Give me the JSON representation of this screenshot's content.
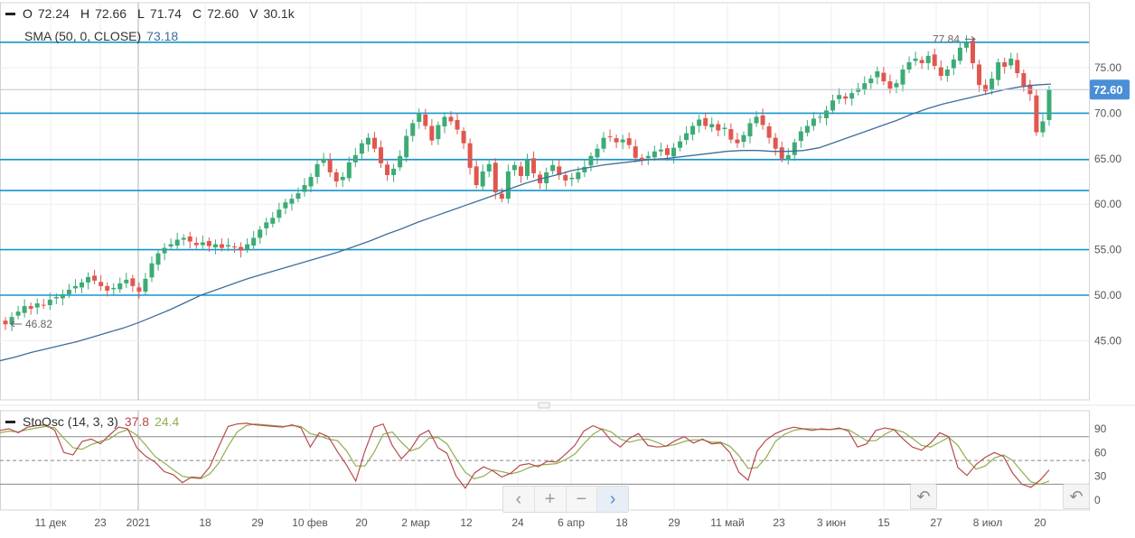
{
  "ohlc": {
    "o_label": "O",
    "o_value": "72.24",
    "h_label": "H",
    "h_value": "72.66",
    "l_label": "L",
    "l_value": "71.74",
    "c_label": "C",
    "c_value": "72.60",
    "v_label": "V",
    "v_value": "30.1k"
  },
  "sma": {
    "label": "SMA (50, 0, CLOSE)",
    "value": "73.18"
  },
  "stoch": {
    "label": "StoOsc (14, 3, 3)",
    "k_value": "37.8",
    "d_value": "24.4"
  },
  "colors": {
    "up": "#3cab76",
    "down": "#e0574f",
    "sma": "#3f6d99",
    "hline": "#1596cf",
    "k": "#b84a4a",
    "d": "#8fae4e",
    "price_tag": "#4a8fd6"
  },
  "nav": {
    "prev": "‹",
    "zoom_in": "+",
    "zoom_out": "−",
    "next": "›"
  },
  "reset_icon": "↶",
  "chart_data": [
    {
      "type": "candlestick",
      "yaxis_ticks": [
        "75.00",
        "70.00",
        "65.00",
        "60.00",
        "55.00",
        "50.00",
        "45.00"
      ],
      "ylim": [
        40.5,
        80.5
      ],
      "current_price_label": "72.60",
      "annotations": [
        {
          "text": "77.84",
          "x": "8 июл",
          "y": 77.84
        },
        {
          "text": "46.82",
          "x": "4 дек",
          "y": 46.82
        }
      ],
      "horizontal_levels": [
        77.8,
        70.0,
        64.9,
        61.5,
        55.0,
        50.0
      ],
      "xaxis_ticks": [
        "11 дек",
        "23",
        "2021",
        "18",
        "29",
        "10 фев",
        "20",
        "2 мар",
        "12",
        "24",
        "6 апр",
        "18",
        "29",
        "11 май",
        "23",
        "3 июн",
        "15",
        "27",
        "8 июл",
        "20"
      ],
      "candle_closes": [
        46.8,
        47.6,
        48.2,
        48.8,
        48.5,
        49.1,
        48.9,
        49.5,
        49.8,
        50.1,
        50.6,
        51.0,
        51.4,
        52.0,
        51.6,
        51.0,
        50.5,
        50.8,
        51.3,
        51.7,
        51.0,
        50.4,
        51.8,
        53.5,
        54.6,
        55.2,
        55.6,
        56.1,
        56.3,
        55.9,
        55.5,
        55.8,
        55.4,
        55.6,
        55.2,
        55.5,
        55.3,
        54.9,
        55.6,
        56.3,
        57.2,
        58.0,
        58.5,
        59.4,
        60.2,
        60.6,
        61.2,
        62.1,
        63.0,
        64.4,
        65.0,
        63.5,
        62.5,
        63.0,
        64.6,
        65.4,
        66.7,
        67.3,
        66.1,
        64.5,
        63.2,
        63.9,
        65.3,
        67.5,
        68.9,
        70.0,
        68.6,
        67.0,
        68.7,
        69.6,
        69.1,
        68.2,
        66.7,
        64.0,
        62.1,
        63.6,
        64.4,
        61.3,
        60.6,
        63.6,
        64.3,
        63.1,
        64.9,
        63.4,
        62.3,
        63.5,
        64.3,
        63.2,
        62.6,
        62.9,
        63.5,
        64.1,
        65.3,
        66.1,
        67.3,
        67.4,
        66.8,
        67.1,
        66.5,
        65.1,
        64.9,
        65.3,
        65.8,
        66.0,
        65.4,
        66.2,
        66.9,
        67.8,
        68.6,
        69.3,
        68.6,
        68.8,
        68.1,
        68.4,
        67.1,
        66.7,
        67.6,
        68.9,
        69.6,
        68.7,
        67.3,
        66.1,
        65.0,
        65.4,
        66.8,
        68.0,
        68.6,
        69.4,
        69.6,
        70.3,
        71.4,
        72.0,
        71.6,
        72.2,
        72.7,
        73.3,
        73.8,
        74.6,
        73.5,
        72.7,
        73.3,
        74.8,
        75.6,
        76.0,
        75.5,
        76.3,
        75.2,
        74.1,
        74.8,
        75.9,
        77.2,
        77.8,
        75.5,
        73.1,
        72.4,
        73.8,
        75.6,
        75.1,
        76.0,
        74.4,
        73.0,
        72.1,
        67.9,
        69.1,
        72.6
      ],
      "sma_values": [
        42.8,
        43.2,
        43.7,
        44.1,
        44.5,
        44.9,
        45.4,
        45.9,
        46.4,
        47.0,
        47.7,
        48.4,
        49.2,
        50.0,
        50.6,
        51.2,
        51.8,
        52.3,
        52.8,
        53.3,
        53.8,
        54.3,
        54.8,
        55.4,
        56.0,
        56.7,
        57.3,
        58.0,
        58.6,
        59.2,
        59.8,
        60.4,
        61.0,
        61.7,
        62.3,
        62.8,
        63.2,
        63.7,
        64.0,
        64.3,
        64.5,
        64.7,
        64.9,
        65.0,
        65.2,
        65.4,
        65.6,
        65.8,
        65.9,
        65.9,
        65.8,
        65.8,
        65.9,
        66.2,
        66.8,
        67.4,
        68.0,
        68.6,
        69.2,
        69.9,
        70.5,
        71.0,
        71.4,
        71.8,
        72.2,
        72.6,
        72.9,
        73.1,
        73.2
      ],
      "title": "",
      "xlabel": "",
      "ylabel": ""
    },
    {
      "type": "line",
      "name": "StoOsc (14, 3, 3)",
      "yaxis_ticks": [
        "90",
        "60",
        "30",
        "0"
      ],
      "ylim": [
        -10,
        105
      ],
      "levels": [
        80,
        50,
        20
      ],
      "k_values": [
        88,
        90,
        85,
        92,
        94,
        95,
        88,
        60,
        57,
        74,
        77,
        71,
        82,
        92,
        90,
        66,
        55,
        48,
        36,
        32,
        22,
        29,
        28,
        42,
        68,
        93,
        96,
        97,
        95,
        94,
        93,
        92,
        95,
        91,
        67,
        85,
        80,
        61,
        44,
        24,
        62,
        92,
        96,
        69,
        52,
        64,
        82,
        88,
        66,
        59,
        30,
        15,
        34,
        42,
        37,
        29,
        34,
        44,
        46,
        42,
        49,
        48,
        58,
        69,
        87,
        94,
        89,
        75,
        67,
        78,
        84,
        69,
        67,
        68,
        75,
        80,
        72,
        77,
        71,
        72,
        60,
        35,
        25,
        62,
        76,
        84,
        89,
        92,
        90,
        88,
        90,
        89,
        91,
        87,
        67,
        71,
        88,
        91,
        89,
        77,
        67,
        63,
        72,
        85,
        80,
        41,
        31,
        45,
        54,
        60,
        55,
        34,
        20,
        16,
        25,
        38
      ],
      "d_values": [
        85,
        87,
        86,
        89,
        91,
        93,
        91,
        78,
        66,
        64,
        70,
        74,
        77,
        85,
        89,
        82,
        69,
        55,
        47,
        38,
        30,
        28,
        27,
        33,
        47,
        68,
        86,
        94,
        96,
        95,
        94,
        93,
        94,
        93,
        84,
        81,
        77,
        75,
        62,
        43,
        43,
        60,
        83,
        86,
        73,
        62,
        66,
        78,
        79,
        71,
        52,
        35,
        27,
        30,
        38,
        36,
        33,
        36,
        41,
        44,
        45,
        46,
        51,
        58,
        71,
        83,
        90,
        86,
        77,
        73,
        76,
        77,
        73,
        68,
        70,
        74,
        76,
        76,
        73,
        73,
        68,
        56,
        40,
        41,
        54,
        74,
        83,
        88,
        90,
        90,
        89,
        89,
        90,
        89,
        82,
        75,
        75,
        83,
        89,
        86,
        78,
        69,
        67,
        73,
        79,
        69,
        51,
        39,
        43,
        53,
        57,
        50,
        36,
        23,
        20,
        24
      ]
    }
  ]
}
